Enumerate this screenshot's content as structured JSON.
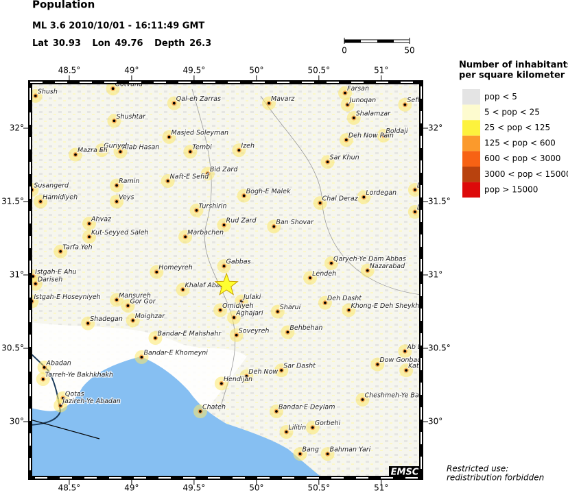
{
  "header": {
    "title": "Population",
    "event": "ML 3.6  2010/10/01 - 16:11:49 GMT",
    "lat_label": "Lat",
    "lat": 30.93,
    "lon_label": "Lon",
    "lon": 49.76,
    "depth_label": "Depth",
    "depth": 26.3
  },
  "scale_bar": {
    "labels": [
      "0",
      "50"
    ]
  },
  "map": {
    "lonlim": [
      48.187,
      51.32
    ],
    "latlim": [
      29.617,
      32.313
    ],
    "lonticks": [
      {
        "value": 48.5,
        "label": "48.5°"
      },
      {
        "value": 49,
        "label": "49°"
      },
      {
        "value": 49.5,
        "label": "49.5°"
      },
      {
        "value": 50,
        "label": "50°"
      },
      {
        "value": 50.5,
        "label": "50.5°"
      },
      {
        "value": 51,
        "label": "51°"
      }
    ],
    "latticks": [
      {
        "value": 30,
        "label": "30°"
      },
      {
        "value": 30.5,
        "label": "30.5°"
      },
      {
        "value": 31,
        "label": "31°"
      },
      {
        "value": 31.5,
        "label": "31.5°"
      },
      {
        "value": 32,
        "label": "32°"
      }
    ]
  },
  "cities": [
    {
      "name": "Shush",
      "lon": 48.23,
      "lat": 32.22
    },
    {
      "name": "Gotvand",
      "lon": 48.85,
      "lat": 32.27
    },
    {
      "name": "Shushtar",
      "lon": 48.86,
      "lat": 32.05
    },
    {
      "name": "Qal-eh Zarras",
      "lon": 49.34,
      "lat": 32.17
    },
    {
      "name": "Masjed Soleyman",
      "lon": 49.3,
      "lat": 31.94
    },
    {
      "name": "Mavarz",
      "lon": 50.1,
      "lat": 32.17
    },
    {
      "name": "Farsan",
      "lon": 50.71,
      "lat": 32.24
    },
    {
      "name": "Junoqan",
      "lon": 50.73,
      "lat": 32.16
    },
    {
      "name": "Shalamzar",
      "lon": 50.78,
      "lat": 32.07
    },
    {
      "name": "Sefid",
      "lon": 51.19,
      "lat": 32.16
    },
    {
      "name": "Boldaji",
      "lon": 51.02,
      "lat": 31.95
    },
    {
      "name": "Deh Now Pain",
      "lon": 50.72,
      "lat": 31.92
    },
    {
      "name": "Izeh",
      "lon": 49.86,
      "lat": 31.85
    },
    {
      "name": "Guriyeh",
      "lon": 48.76,
      "lat": 31.85
    },
    {
      "name": "Alab Hasan",
      "lon": 48.91,
      "lat": 31.84
    },
    {
      "name": "Mazra Eh",
      "lon": 48.55,
      "lat": 31.82
    },
    {
      "name": "Tembi",
      "lon": 49.47,
      "lat": 31.84
    },
    {
      "name": "Bid Zard",
      "lon": 49.61,
      "lat": 31.69
    },
    {
      "name": "Naft-E Sefid",
      "lon": 49.29,
      "lat": 31.64
    },
    {
      "name": "Sar Khun",
      "lon": 50.57,
      "lat": 31.77
    },
    {
      "name": "Ramin",
      "lon": 48.88,
      "lat": 31.61
    },
    {
      "name": "Susangerd",
      "lon": 48.2,
      "lat": 31.58
    },
    {
      "name": "Bogh-E Malek",
      "lon": 49.9,
      "lat": 31.54
    },
    {
      "name": "Dowm",
      "lon": 51.27,
      "lat": 31.58
    },
    {
      "name": "Hamidiyeh",
      "lon": 48.27,
      "lat": 31.5
    },
    {
      "name": "Veys",
      "lon": 48.88,
      "lat": 31.5
    },
    {
      "name": "Chal Deraz",
      "lon": 50.51,
      "lat": 31.49
    },
    {
      "name": "Lordegan",
      "lon": 50.86,
      "lat": 31.53
    },
    {
      "name": "Deh-E",
      "lon": 51.27,
      "lat": 31.43
    },
    {
      "name": "Turshirin",
      "lon": 49.52,
      "lat": 31.44
    },
    {
      "name": "Ahvaz",
      "lon": 48.66,
      "lat": 31.35
    },
    {
      "name": "Rud Zard",
      "lon": 49.74,
      "lat": 31.34
    },
    {
      "name": "Ban Shovar",
      "lon": 50.14,
      "lat": 31.33
    },
    {
      "name": "Kut-Seyyed Saleh",
      "lon": 48.66,
      "lat": 31.26
    },
    {
      "name": "Marbachen",
      "lon": 49.43,
      "lat": 31.26
    },
    {
      "name": "Tarfa Yeh",
      "lon": 48.43,
      "lat": 31.16
    },
    {
      "name": "Homeyreh",
      "lon": 49.2,
      "lat": 31.02
    },
    {
      "name": "Gabbas",
      "lon": 49.74,
      "lat": 31.06
    },
    {
      "name": "Qaryeh-Ye Dam Abbas",
      "lon": 50.6,
      "lat": 31.08
    },
    {
      "name": "Nazarabad",
      "lon": 50.89,
      "lat": 31.03
    },
    {
      "name": "Istgah-E Ahu",
      "lon": 48.21,
      "lat": 30.99
    },
    {
      "name": "Dariseh",
      "lon": 48.23,
      "lat": 30.94
    },
    {
      "name": "Lendeh",
      "lon": 50.43,
      "lat": 30.98
    },
    {
      "name": "Khalaf Abad",
      "lon": 49.41,
      "lat": 30.9
    },
    {
      "name": "Julaki",
      "lon": 49.88,
      "lat": 30.82
    },
    {
      "name": "Mansureh",
      "lon": 48.88,
      "lat": 30.83
    },
    {
      "name": "Gor Gor",
      "lon": 48.97,
      "lat": 30.79
    },
    {
      "name": "Istgah-E Hoseyniyeh",
      "lon": 48.2,
      "lat": 30.82
    },
    {
      "name": "Deh Dasht",
      "lon": 50.55,
      "lat": 30.81
    },
    {
      "name": "Khong-E Deh Sheykh",
      "lon": 50.74,
      "lat": 30.76
    },
    {
      "name": "Omidiyeh",
      "lon": 49.71,
      "lat": 30.76
    },
    {
      "name": "Sharui",
      "lon": 50.17,
      "lat": 30.75
    },
    {
      "name": "Aghajari",
      "lon": 49.82,
      "lat": 30.71
    },
    {
      "name": "Shadegan",
      "lon": 48.65,
      "lat": 30.67
    },
    {
      "name": "Moighzar",
      "lon": 49.01,
      "lat": 30.69
    },
    {
      "name": "Behbehan",
      "lon": 50.25,
      "lat": 30.61
    },
    {
      "name": "Soveyreh",
      "lon": 49.84,
      "lat": 30.59
    },
    {
      "name": "Bandar-E Mahshahr",
      "lon": 49.19,
      "lat": 30.57
    },
    {
      "name": "Ab Dehg",
      "lon": 51.19,
      "lat": 30.48
    },
    {
      "name": "Bandar-E Khomeyni",
      "lon": 49.08,
      "lat": 30.44
    },
    {
      "name": "Abadan",
      "lon": 48.3,
      "lat": 30.37
    },
    {
      "name": "Dow Gonbadan",
      "lon": 50.97,
      "lat": 30.39
    },
    {
      "name": "Katt",
      "lon": 51.2,
      "lat": 30.35
    },
    {
      "name": "Sar Dasht",
      "lon": 50.2,
      "lat": 30.35
    },
    {
      "name": "Deh Now",
      "lon": 49.92,
      "lat": 30.31
    },
    {
      "name": "Torreh-Ye Bakhkhakh",
      "lon": 48.29,
      "lat": 30.29
    },
    {
      "name": "Hendijan",
      "lon": 49.72,
      "lat": 30.26
    },
    {
      "name": "Cheshmeh-Ye Ba",
      "lon": 50.85,
      "lat": 30.15
    },
    {
      "name": "Qotas",
      "lon": 48.45,
      "lat": 30.16
    },
    {
      "name": "Jazireh-Ye Abadan",
      "lon": 48.43,
      "lat": 30.11
    },
    {
      "name": "Chateh",
      "lon": 49.55,
      "lat": 30.07
    },
    {
      "name": "Bandar-E Deylam",
      "lon": 50.16,
      "lat": 30.07
    },
    {
      "name": "Gorbehi",
      "lon": 50.45,
      "lat": 29.96
    },
    {
      "name": "Lilitin",
      "lon": 50.24,
      "lat": 29.93
    },
    {
      "name": "Bang",
      "lon": 50.35,
      "lat": 29.78
    },
    {
      "name": "Bahman Yari",
      "lon": 50.57,
      "lat": 29.78
    }
  ],
  "legend": {
    "title_lines": [
      "Number of inhabitants",
      "per square kilometer"
    ],
    "items": [
      {
        "label": "pop < 5",
        "color": "#e4e4e4"
      },
      {
        "label": "5 < pop < 25",
        "color": "#fdfbcf"
      },
      {
        "label": "25 < pop < 125",
        "color": "#fdf23d"
      },
      {
        "label": "125 < pop < 600",
        "color": "#fb9a2c"
      },
      {
        "label": "600 < pop < 3000",
        "color": "#f76214"
      },
      {
        "label": "3000 < pop < 15000",
        "color": "#b8420e"
      },
      {
        "label": "pop > 15000",
        "color": "#dd0a0a"
      }
    ]
  },
  "footer": {
    "notice_lines": [
      "Restricted use:",
      "redistribution forbidden"
    ],
    "logo": "EMSC"
  }
}
